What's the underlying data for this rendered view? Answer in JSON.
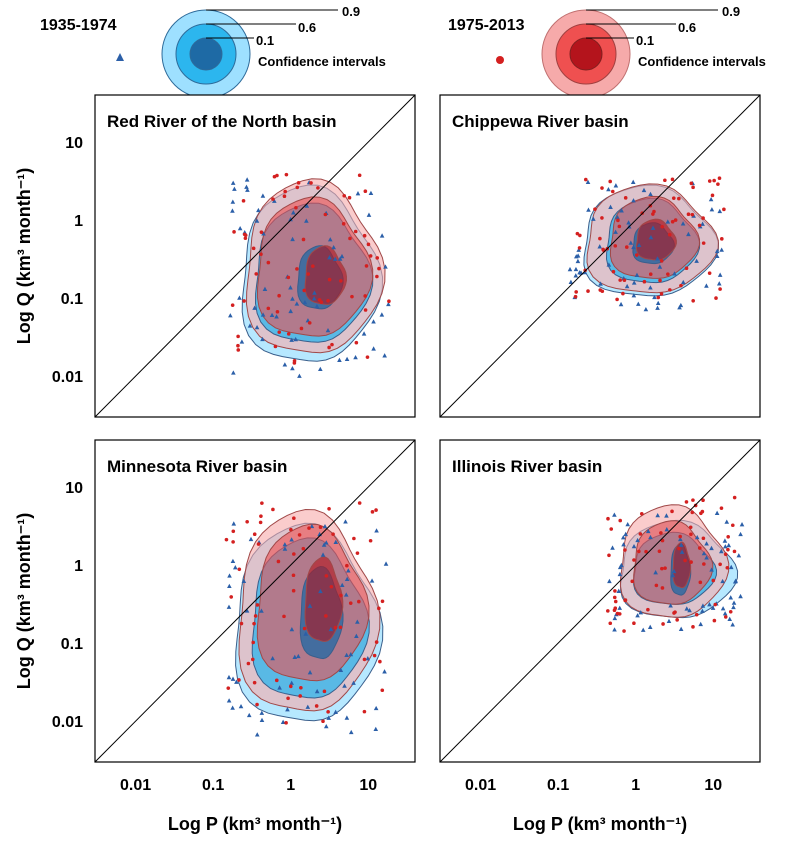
{
  "chart_data": {
    "type": "scatter",
    "x_scale": "log",
    "y_scale": "log",
    "xlim": [
      0.003,
      40
    ],
    "ylim": [
      0.003,
      40
    ],
    "xlabel": "Log P (km³ month⁻¹)",
    "ylabel": "Log Q (km³ month⁻¹)",
    "xticks": [
      "0.01",
      "0.1",
      "1",
      "10"
    ],
    "yticks": [
      "0.01",
      "0.1",
      "1",
      "10"
    ],
    "legend": {
      "period1": {
        "label": "1935-1974",
        "marker": "triangle",
        "color": "#2b5fa8",
        "fills": [
          "#9ee0ff",
          "#2cb6ee",
          "#1e6aa5"
        ]
      },
      "period2": {
        "label": "1975-2013",
        "marker": "circle",
        "color": "#d42020",
        "fills": [
          "#f6aaaa",
          "#ef5050",
          "#b4141c"
        ]
      },
      "levels": [
        "0.9",
        "0.6",
        "0.1"
      ],
      "caption": "Confidence intervals"
    },
    "panels": [
      {
        "title": "Red River of the North basin",
        "one_to_one": true,
        "series": [
          {
            "name": "1935-1974",
            "center": [
              2.5,
              0.12
            ],
            "contours": {
              "0.9": [
                0.22,
                0.014,
                13,
                2.5
              ],
              "0.6": [
                0.33,
                0.025,
                10,
                1.5
              ],
              "0.1": [
                1.2,
                0.07,
                4.5,
                0.45
              ]
            }
          },
          {
            "name": "1975-2013",
            "center": [
              3.0,
              0.15
            ],
            "contours": {
              "0.9": [
                0.25,
                0.018,
                14,
                3.0
              ],
              "0.6": [
                0.35,
                0.03,
                10,
                1.8
              ],
              "0.1": [
                1.5,
                0.08,
                5,
                0.45
              ]
            }
          }
        ]
      },
      {
        "title": "Chippewa River basin",
        "one_to_one": true,
        "series": [
          {
            "name": "1935-1974",
            "center": [
              1.7,
              0.5
            ],
            "contours": {
              "0.9": [
                0.2,
                0.1,
                10,
                2.6
              ],
              "0.6": [
                0.4,
                0.15,
                6,
                1.8
              ],
              "0.1": [
                0.9,
                0.27,
                3,
                0.9
              ]
            }
          },
          {
            "name": "1975-2013",
            "center": [
              1.8,
              0.55
            ],
            "contours": {
              "0.9": [
                0.22,
                0.11,
                10,
                2.7
              ],
              "0.6": [
                0.45,
                0.17,
                6,
                1.9
              ],
              "0.1": [
                1.0,
                0.3,
                3.2,
                1.0
              ]
            }
          }
        ]
      },
      {
        "title": "Minnesota River basin",
        "one_to_one": true,
        "series": [
          {
            "name": "1935-1974",
            "center": [
              2.8,
              0.25
            ],
            "contours": {
              "0.9": [
                0.18,
                0.009,
                13,
                3.0
              ],
              "0.6": [
                0.3,
                0.018,
                9,
                2.0
              ],
              "0.1": [
                1.3,
                0.06,
                4.5,
                0.9
              ]
            }
          },
          {
            "name": "1975-2013",
            "center": [
              3.0,
              0.35
            ],
            "contours": {
              "0.9": [
                0.2,
                0.012,
                12,
                4.5
              ],
              "0.6": [
                0.35,
                0.03,
                9,
                3.0
              ],
              "0.1": [
                1.5,
                0.1,
                4.5,
                1.2
              ]
            }
          }
        ]
      },
      {
        "title": "Illinois River basin",
        "one_to_one": true,
        "series": [
          {
            "name": "1935-1974",
            "center": [
              3.8,
              0.8
            ],
            "contours": {
              "0.9": [
                0.6,
                0.2,
                18,
                3.5
              ],
              "0.6": [
                0.9,
                0.3,
                10,
                2.5
              ],
              "0.1": [
                2.8,
                0.4,
                5,
                1.8
              ]
            }
          },
          {
            "name": "1975-2013",
            "center": [
              4.0,
              0.9
            ],
            "contours": {
              "0.9": [
                0.6,
                0.2,
                14,
                5.5
              ],
              "0.6": [
                0.9,
                0.3,
                9,
                3.5
              ],
              "0.1": [
                3.0,
                0.5,
                5,
                1.9
              ]
            }
          }
        ]
      }
    ]
  }
}
